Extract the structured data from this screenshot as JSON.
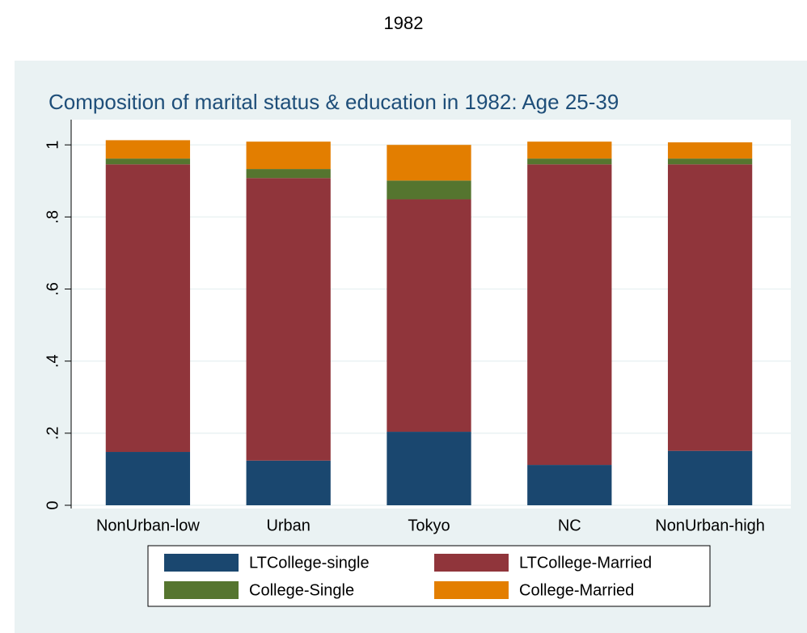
{
  "heading": "1982",
  "chart_data": {
    "type": "stacked_bar",
    "title": "Composition of marital status & education in 1982: Age 25-39",
    "categories": [
      "NonUrban-low",
      "Urban",
      "Tokyo",
      "NC",
      "NonUrban-high"
    ],
    "series": [
      {
        "name": "LTCollege-single",
        "color": "#1a476f",
        "values": [
          0.148,
          0.124,
          0.204,
          0.112,
          0.151
        ]
      },
      {
        "name": "LTCollege-Married",
        "color": "#90353b",
        "values": [
          0.798,
          0.784,
          0.645,
          0.834,
          0.795
        ]
      },
      {
        "name": "College-Single",
        "color": "#55752f",
        "values": [
          0.016,
          0.025,
          0.052,
          0.016,
          0.016
        ]
      },
      {
        "name": "College-Married",
        "color": "#e37e00",
        "values": [
          0.051,
          0.076,
          0.099,
          0.047,
          0.045
        ]
      }
    ],
    "ylim": [
      0,
      1.07
    ],
    "yticks": [
      0,
      {
        "value": 0.2,
        "label": ".2"
      },
      {
        "value": 0.4,
        "label": ".4"
      },
      {
        "value": 0.6,
        "label": ".6"
      },
      {
        "value": 0.8,
        "label": ".8"
      },
      1
    ],
    "grid": true
  }
}
